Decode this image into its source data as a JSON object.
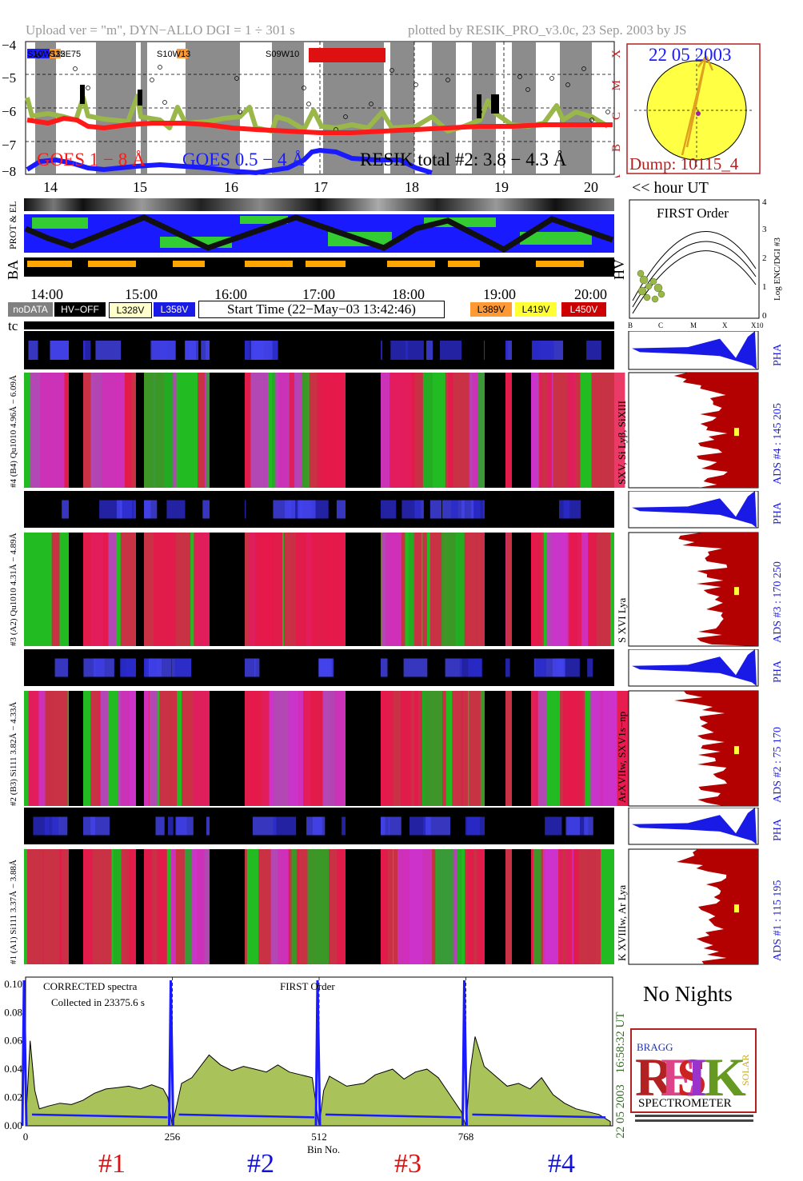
{
  "header": {
    "left": "Upload ver = \"m\", DYN−ALLO DGI =   1 ÷ 301 s",
    "right": "plotted by RESIK_PRO_v3.0c, 23 Sep. 2003 by JS"
  },
  "goes": {
    "yticks": [
      "−4",
      "−5",
      "−6",
      "−7",
      "−8"
    ],
    "class_letters": [
      "X",
      "M",
      "C",
      "B",
      "A"
    ],
    "regions": [
      "S10W115",
      "S32E75",
      "S10W13",
      "S09W10"
    ],
    "legend_goes1": "GOES 1 − 8 Å",
    "legend_goes05": "GOES 0.5 − 4 Å",
    "legend_resik": "RESIK total #2: 3.8 − 4.3 Å",
    "colors": {
      "goes_long": "#ff1a1a",
      "goes_short": "#1a1aff",
      "resik": "#9ab84a",
      "night": "#8c8c8c"
    }
  },
  "sun": {
    "date": "22 05 2003",
    "dump": "Dump: 10115_4"
  },
  "hour_axis": {
    "labels": [
      "14",
      "15",
      "16",
      "17",
      "18",
      "19",
      "20"
    ],
    "unit": "<< hour UT"
  },
  "aux_labels": {
    "prot": "PROT & EL",
    "ba": "BA",
    "hv": "HV"
  },
  "time_axis": {
    "labels": [
      "14:00",
      "15:00",
      "16:00",
      "17:00",
      "18:00",
      "19:00",
      "20:00"
    ]
  },
  "status": {
    "nodata": "noDATA",
    "hvoff": "HV−OFF",
    "v328": "L328V",
    "v358": "L358V",
    "start": "Start Time (22−May−03 13:42:46)",
    "v389": "L389V",
    "v419": "L419V",
    "v450": "L450V",
    "colors": {
      "nodata": "#808080",
      "hvoff": "#000000",
      "v328": "#ffffcc",
      "v358": "#1a1ae6",
      "v389": "#ff9933",
      "v419": "#ffff33",
      "v450": "#cc0000"
    }
  },
  "first_order": {
    "title": "FIRST Order",
    "ylabel": "Log ENC/DGI #3",
    "yticks": [
      "4",
      "3",
      "2",
      "1",
      "0"
    ],
    "xticks": [
      "B",
      "C",
      "M",
      "X",
      "X10"
    ]
  },
  "tc_label": "tc",
  "channels": [
    {
      "pha_left": "#4 (B4) Qu1010 4.96Å − 6.09Å",
      "lines": "SXV, Si Lyβ, SiXIII",
      "ads": "ADS #4 :  145 205",
      "pha": "PHA"
    },
    {
      "pha_left": "#3 (A2) Qu1010 4.31Å − 4.89Å",
      "lines": "S XVI Lya",
      "ads": "ADS #3 :  170 250",
      "pha": "PHA"
    },
    {
      "pha_left": "#2 (B3) Si111 3.82Å − 4.33Å",
      "lines": "ArXVIIw, SXV1s−np",
      "ads": "ADS #2 :  75 170",
      "pha": "PHA"
    },
    {
      "pha_left": "#1 (A1) Si111 3.37Å − 3.88Å",
      "lines": "K XVIIIw, Ar Lya",
      "ads": "ADS #1 :  115 195",
      "pha": "PHA"
    }
  ],
  "spectrum": {
    "title": "CORRECTED spectra",
    "collected": "Collected in 23375.6 s",
    "order": "FIRST Order",
    "yticks": [
      "0.10",
      "0.08",
      "0.06",
      "0.04",
      "0.02",
      "0.00"
    ],
    "xticks": [
      "0",
      "256",
      "512",
      "768"
    ],
    "xlabel": "Bin No.",
    "time_label": "16:58:32 UT",
    "date_label": "22 05 2003",
    "channels": [
      "#1",
      "#2",
      "#3",
      "#4"
    ],
    "channel_colors": [
      "#dd1111",
      "#1111dd",
      "#dd1111",
      "#1111dd"
    ]
  },
  "no_nights": "No Nights",
  "logo": {
    "spectrometer": "SPECTROMETER",
    "letters": [
      "R",
      "E",
      "S",
      "I",
      "K"
    ],
    "bragg": "BRAGG",
    "solar": "SOLAR"
  },
  "chart_data": {
    "type": "line",
    "title": "CORRECTED spectra",
    "xlabel": "Bin No.",
    "ylabel": "",
    "xlim": [
      0,
      1024
    ],
    "ylim": [
      0,
      0.105
    ],
    "grid": false,
    "series": [
      {
        "segment": "#1",
        "x": [
          0,
          8,
          16,
          24,
          40,
          60,
          80,
          100,
          120,
          140,
          160,
          180,
          200,
          220,
          240,
          248,
          256
        ],
        "y": [
          0.0,
          0.06,
          0.025,
          0.012,
          0.014,
          0.016,
          0.015,
          0.018,
          0.023,
          0.026,
          0.027,
          0.028,
          0.026,
          0.029,
          0.026,
          0.02,
          0.0
        ]
      },
      {
        "segment": "#2",
        "x": [
          256,
          264,
          272,
          290,
          320,
          340,
          360,
          380,
          400,
          420,
          440,
          460,
          480,
          500,
          512
        ],
        "y": [
          0.0,
          0.015,
          0.03,
          0.034,
          0.05,
          0.043,
          0.039,
          0.042,
          0.04,
          0.038,
          0.043,
          0.038,
          0.036,
          0.034,
          0.0
        ]
      },
      {
        "segment": "#3",
        "x": [
          512,
          520,
          530,
          560,
          590,
          610,
          640,
          660,
          680,
          700,
          720,
          740,
          760,
          768
        ],
        "y": [
          0.0,
          0.025,
          0.035,
          0.028,
          0.03,
          0.036,
          0.04,
          0.033,
          0.038,
          0.04,
          0.034,
          0.022,
          0.01,
          0.0
        ]
      },
      {
        "segment": "#4",
        "x": [
          768,
          776,
          784,
          800,
          820,
          840,
          860,
          880,
          900,
          920,
          940,
          960,
          980,
          1000,
          1020
        ],
        "y": [
          0.0,
          0.04,
          0.063,
          0.042,
          0.035,
          0.028,
          0.03,
          0.026,
          0.034,
          0.022,
          0.016,
          0.012,
          0.01,
          0.008,
          0.003
        ]
      }
    ]
  }
}
